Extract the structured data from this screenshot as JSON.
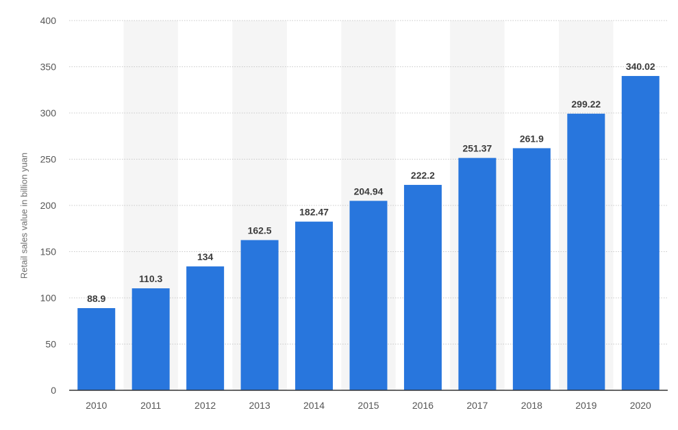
{
  "chart_data": {
    "type": "bar",
    "title": "",
    "xlabel": "",
    "ylabel": "Retail sales value in billion yuan",
    "categories": [
      "2010",
      "2011",
      "2012",
      "2013",
      "2014",
      "2015",
      "2016",
      "2017",
      "2018",
      "2019",
      "2020"
    ],
    "values": [
      88.9,
      110.3,
      134,
      162.5,
      182.47,
      204.94,
      222.2,
      251.37,
      261.9,
      299.22,
      340.02
    ],
    "value_labels": [
      "88.9",
      "110.3",
      "134",
      "162.5",
      "182.47",
      "204.94",
      "222.2",
      "251.37",
      "261.9",
      "299.22",
      "340.02"
    ],
    "ylim": [
      0,
      400
    ],
    "y_ticks": [
      0,
      50,
      100,
      150,
      200,
      250,
      300,
      350,
      400
    ],
    "grid": true,
    "legend": "none",
    "colors": {
      "bar": "#2876dd",
      "alt_band": "#f5f5f5",
      "grid": "#c8c8c8",
      "tick_text": "#555555",
      "value_text": "#3c3c3c",
      "axis_line": "#333333"
    }
  }
}
